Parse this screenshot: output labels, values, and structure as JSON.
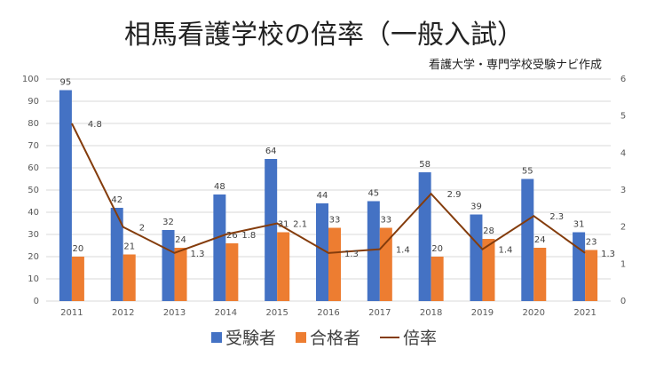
{
  "chart_data": {
    "type": "bar+line",
    "title": "相馬看護学校の倍率（一般入試）",
    "subtitle": "看護大学・専門学校受験ナビ作成",
    "categories": [
      "2011",
      "2012",
      "2013",
      "2014",
      "2015",
      "2016",
      "2017",
      "2018",
      "2019",
      "2020",
      "2021"
    ],
    "series": [
      {
        "name": "受験者",
        "type": "bar",
        "axis": "left",
        "color": "#4472C4",
        "values": [
          95,
          42,
          32,
          48,
          64,
          44,
          45,
          58,
          39,
          55,
          31
        ]
      },
      {
        "name": "合格者",
        "type": "bar",
        "axis": "left",
        "color": "#ED7D31",
        "values": [
          20,
          21,
          24,
          26,
          31,
          33,
          33,
          20,
          28,
          24,
          23
        ]
      },
      {
        "name": "倍率",
        "type": "line",
        "axis": "right",
        "color": "#843C0C",
        "values": [
          4.8,
          2,
          1.3,
          1.8,
          2.1,
          1.3,
          1.4,
          2.9,
          1.4,
          2.3,
          1.3
        ]
      }
    ],
    "ylim": [
      0,
      100
    ],
    "yticks": [
      0,
      10,
      20,
      30,
      40,
      50,
      60,
      70,
      80,
      90,
      100
    ],
    "y2lim": [
      0,
      6
    ],
    "y2ticks": [
      0,
      1,
      2,
      3,
      4,
      5,
      6
    ],
    "grid": true,
    "legend": "bottom"
  }
}
